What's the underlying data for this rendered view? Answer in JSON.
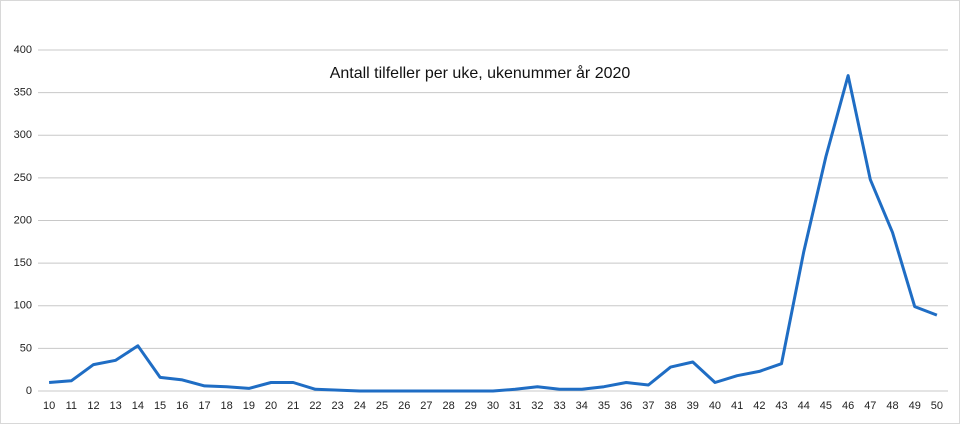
{
  "chart_data": {
    "type": "line",
    "title": "Antall tilfeller per uke, ukenummer år 2020",
    "categories": [
      "10",
      "11",
      "12",
      "13",
      "14",
      "15",
      "16",
      "17",
      "18",
      "19",
      "20",
      "21",
      "22",
      "23",
      "24",
      "25",
      "26",
      "27",
      "28",
      "29",
      "30",
      "31",
      "32",
      "33",
      "34",
      "35",
      "36",
      "37",
      "38",
      "39",
      "40",
      "41",
      "42",
      "43",
      "44",
      "45",
      "46",
      "47",
      "48",
      "49",
      "50"
    ],
    "values": [
      10,
      12,
      31,
      36,
      53,
      16,
      13,
      6,
      5,
      3,
      10,
      10,
      2,
      1,
      0,
      0,
      0,
      0,
      0,
      0,
      0,
      2,
      5,
      2,
      2,
      5,
      10,
      7,
      28,
      34,
      10,
      18,
      23,
      32,
      163,
      275,
      370,
      248,
      186,
      99,
      89
    ],
    "color": "#1f6dc4",
    "ylim": [
      0,
      400
    ],
    "yticks": [
      0,
      50,
      100,
      150,
      200,
      250,
      300,
      350,
      400
    ],
    "grid": true
  }
}
